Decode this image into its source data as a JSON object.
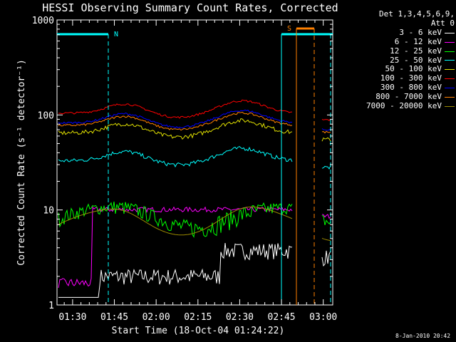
{
  "chart_data": {
    "type": "line",
    "title": "HESSI Observing Summary Count Rates, Corrected",
    "xlabel": "Start Time (18-Oct-04 01:24:22)",
    "ylabel": "Corrected Count Rate (s⁻¹ detector⁻¹)",
    "yscale": "log",
    "ylim": [
      1,
      1000
    ],
    "xlim_minutes": [
      0,
      99
    ],
    "x_ticks": [
      "01:30",
      "01:45",
      "02:00",
      "02:15",
      "02:30",
      "02:45",
      "03:00"
    ],
    "y_ticks": [
      "1",
      "10",
      "100",
      "1000"
    ],
    "legend_header": [
      "Det 1,3,4,5,6,9,",
      "Att 0"
    ],
    "series": [
      {
        "name": "3 - 6 keV",
        "color": "#ffffff"
      },
      {
        "name": "6 - 12 keV",
        "color": "#ff00ff"
      },
      {
        "name": "12 - 25 keV",
        "color": "#00ff00"
      },
      {
        "name": "25 - 50 keV",
        "color": "#00ffff"
      },
      {
        "name": "50 - 100 keV",
        "color": "#e0e000"
      },
      {
        "name": "100 - 300 keV",
        "color": "#ff0000"
      },
      {
        "name": "300 - 800 keV",
        "color": "#0000ff"
      },
      {
        "name": "800 - 7000 keV",
        "color": "#ff8000"
      },
      {
        "name": "7000 - 20000 keV",
        "color": "#998800"
      }
    ],
    "annotations": {
      "N": "N",
      "S": "S"
    },
    "timestamp": "8-Jan-2010 20:42"
  }
}
